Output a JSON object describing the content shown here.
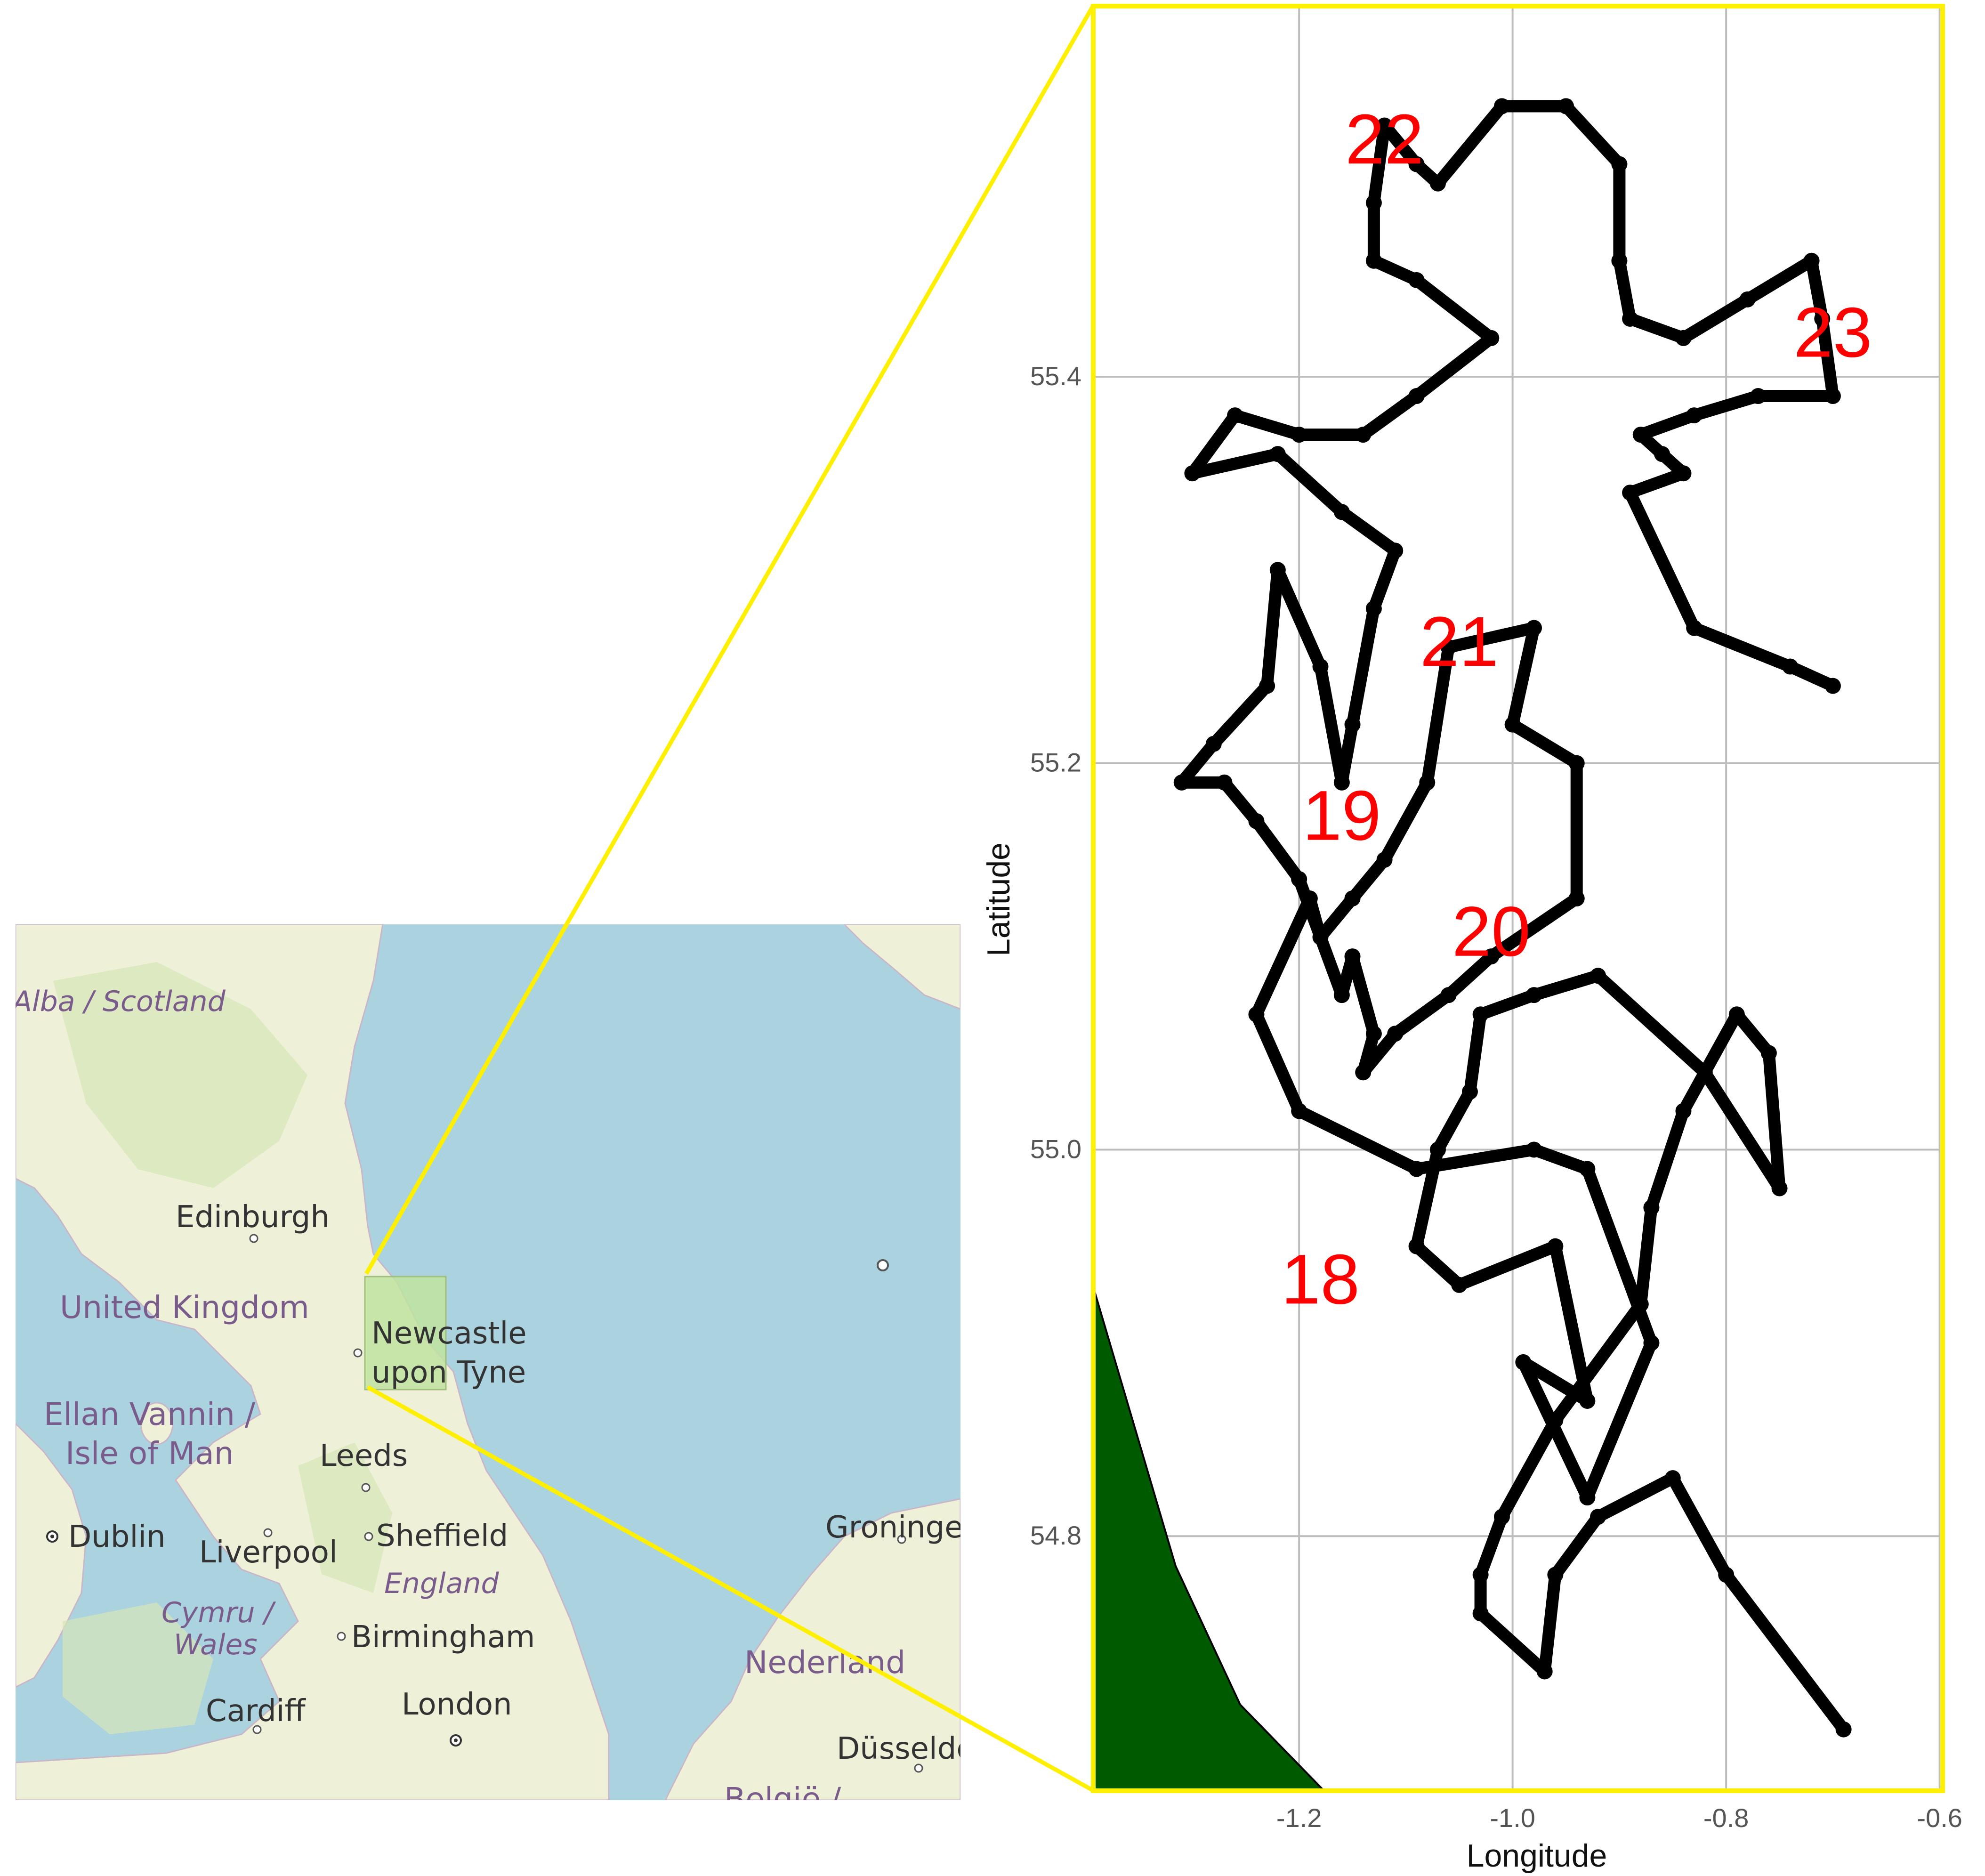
{
  "map": {
    "labels": {
      "scotland": "Alba / Scotland",
      "edinburgh": "Edinburgh",
      "united_kingdom": "United Kingdom",
      "newcastle_line1": "Newcastle",
      "newcastle_line2": "upon Tyne",
      "ellan_vannin": "Ellan Vannin /",
      "isle_of_man": "Isle of Man",
      "leeds": "Leeds",
      "dublin": "Dublin",
      "liverpool": "Liverpool",
      "sheffield": "Sheffield",
      "england": "England",
      "cymru": "Cymru /",
      "wales": "Wales",
      "birmingham": "Birmingham",
      "cardiff": "Cardiff",
      "london": "London",
      "groningen": "Groninge",
      "nederland": "Nederland",
      "dusseldorf": "Düsseldo",
      "belgie": "België /"
    },
    "colors": {
      "sea": "#aad3df",
      "land": "#eef0d8",
      "highlight": "#bfe3a0",
      "connector": "#ffef00"
    }
  },
  "chart_data": {
    "type": "line",
    "xlabel": "Longitude",
    "ylabel": "Latitude",
    "xlim": [
      -1.395,
      -0.595
    ],
    "ylim": [
      54.667,
      55.593
    ],
    "x_ticks": [
      -1.2,
      -1.0,
      -0.8,
      -0.6
    ],
    "x_tick_labels": [
      "-1.2",
      "-1.0",
      "-0.8",
      "-0.6"
    ],
    "y_ticks": [
      54.8,
      55.0,
      55.2,
      55.4
    ],
    "y_tick_labels": [
      "54.8",
      "55.0",
      "55.2",
      "55.4"
    ],
    "grid": true,
    "track_color": "#000000",
    "land_color": "#005a00",
    "label_color": "#ff0000",
    "day_labels": [
      {
        "text": "22",
        "lon": -1.12,
        "lat": 55.52
      },
      {
        "text": "23",
        "lon": -0.7,
        "lat": 55.42
      },
      {
        "text": "21",
        "lon": -1.05,
        "lat": 55.26
      },
      {
        "text": "19",
        "lon": -1.16,
        "lat": 55.17
      },
      {
        "text": "20",
        "lon": -1.02,
        "lat": 55.11
      },
      {
        "text": "18",
        "lon": -1.18,
        "lat": 54.93
      }
    ],
    "track": [
      [
        -0.69,
        54.7
      ],
      [
        -0.8,
        54.78
      ],
      [
        -0.85,
        54.83
      ],
      [
        -0.92,
        54.81
      ],
      [
        -0.96,
        54.78
      ],
      [
        -0.97,
        54.73
      ],
      [
        -1.03,
        54.76
      ],
      [
        -1.03,
        54.78
      ],
      [
        -1.01,
        54.81
      ],
      [
        -0.96,
        54.86
      ],
      [
        -0.88,
        54.92
      ],
      [
        -0.87,
        54.97
      ],
      [
        -0.84,
        55.02
      ],
      [
        -0.79,
        55.07
      ],
      [
        -0.76,
        55.05
      ],
      [
        -0.75,
        54.98
      ],
      [
        -0.82,
        55.04
      ],
      [
        -0.92,
        55.09
      ],
      [
        -0.98,
        55.08
      ],
      [
        -1.03,
        55.07
      ],
      [
        -1.04,
        55.03
      ],
      [
        -1.07,
        55.0
      ],
      [
        -1.09,
        54.95
      ],
      [
        -1.05,
        54.93
      ],
      [
        -0.96,
        54.95
      ],
      [
        -0.93,
        54.87
      ],
      [
        -0.99,
        54.89
      ],
      [
        -0.93,
        54.82
      ],
      [
        -0.87,
        54.9
      ],
      [
        -0.93,
        54.99
      ],
      [
        -0.98,
        55.0
      ],
      [
        -1.09,
        54.99
      ],
      [
        -1.2,
        55.02
      ],
      [
        -1.24,
        55.07
      ],
      [
        -1.19,
        55.13
      ],
      [
        -1.18,
        55.11
      ],
      [
        -1.15,
        55.13
      ],
      [
        -1.12,
        55.15
      ],
      [
        -1.08,
        55.19
      ],
      [
        -1.06,
        55.26
      ],
      [
        -0.98,
        55.27
      ],
      [
        -1.0,
        55.22
      ],
      [
        -0.94,
        55.2
      ],
      [
        -0.94,
        55.13
      ],
      [
        -1.02,
        55.1
      ],
      [
        -1.06,
        55.08
      ],
      [
        -1.11,
        55.06
      ],
      [
        -1.14,
        55.04
      ],
      [
        -1.13,
        55.06
      ],
      [
        -1.15,
        55.1
      ],
      [
        -1.16,
        55.08
      ],
      [
        -1.2,
        55.14
      ],
      [
        -1.24,
        55.17
      ],
      [
        -1.27,
        55.19
      ],
      [
        -1.31,
        55.19
      ],
      [
        -1.28,
        55.21
      ],
      [
        -1.23,
        55.24
      ],
      [
        -1.22,
        55.3
      ],
      [
        -1.18,
        55.25
      ],
      [
        -1.16,
        55.19
      ],
      [
        -1.15,
        55.22
      ],
      [
        -1.13,
        55.28
      ],
      [
        -1.11,
        55.31
      ],
      [
        -1.16,
        55.33
      ],
      [
        -1.22,
        55.36
      ],
      [
        -1.3,
        55.35
      ],
      [
        -1.26,
        55.38
      ],
      [
        -1.2,
        55.37
      ],
      [
        -1.14,
        55.37
      ],
      [
        -1.09,
        55.39
      ],
      [
        -1.02,
        55.42
      ],
      [
        -1.09,
        55.45
      ],
      [
        -1.13,
        55.46
      ],
      [
        -1.13,
        55.49
      ],
      [
        -1.12,
        55.53
      ],
      [
        -1.09,
        55.51
      ],
      [
        -1.07,
        55.5
      ],
      [
        -1.01,
        55.54
      ],
      [
        -0.95,
        55.54
      ],
      [
        -0.9,
        55.51
      ],
      [
        -0.9,
        55.46
      ],
      [
        -0.89,
        55.43
      ],
      [
        -0.84,
        55.42
      ],
      [
        -0.78,
        55.44
      ],
      [
        -0.72,
        55.46
      ],
      [
        -0.71,
        55.43
      ],
      [
        -0.7,
        55.39
      ],
      [
        -0.77,
        55.39
      ],
      [
        -0.83,
        55.38
      ],
      [
        -0.88,
        55.37
      ],
      [
        -0.86,
        55.36
      ],
      [
        -0.84,
        55.35
      ],
      [
        -0.89,
        55.34
      ],
      [
        -0.83,
        55.27
      ],
      [
        -0.74,
        55.25
      ],
      [
        -0.7,
        55.24
      ]
    ]
  }
}
